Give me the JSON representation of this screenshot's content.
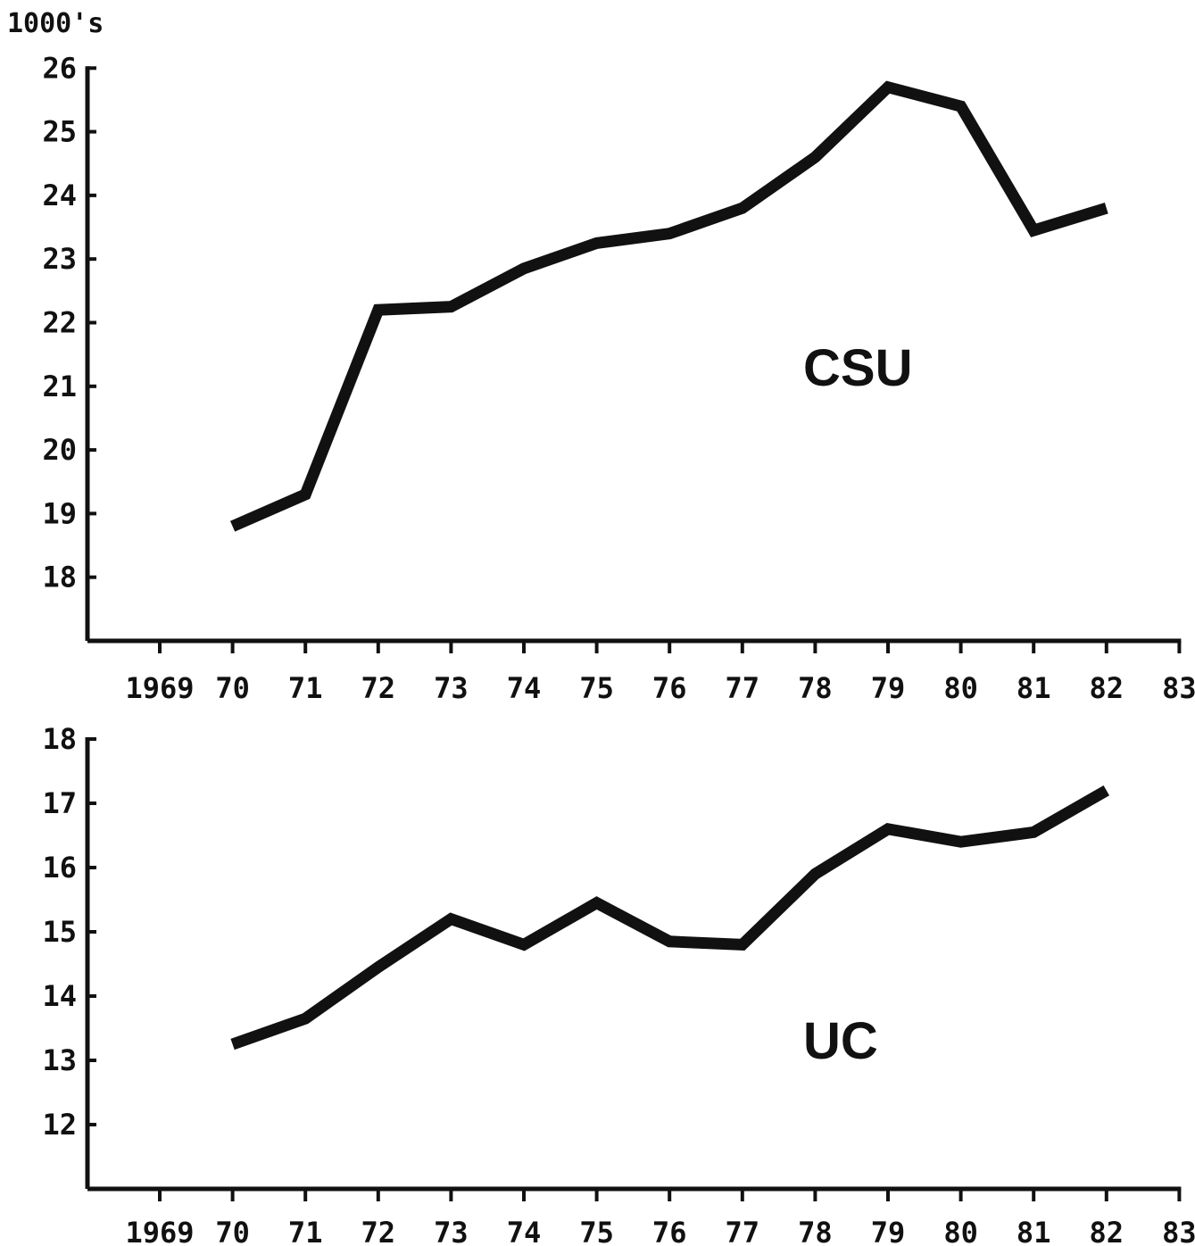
{
  "unit_label": "1000's",
  "chart_data": [
    {
      "type": "line",
      "series": [
        {
          "name": "CSU",
          "x": [
            "70",
            "71",
            "72",
            "73",
            "74",
            "75",
            "76",
            "77",
            "78",
            "79",
            "80",
            "81",
            "82"
          ],
          "values": [
            18.8,
            19.3,
            22.2,
            22.25,
            22.85,
            23.25,
            23.4,
            23.8,
            24.6,
            25.7,
            25.4,
            23.45,
            23.8
          ]
        }
      ],
      "x_tick_labels": [
        "1969",
        "70",
        "71",
        "72",
        "73",
        "74",
        "75",
        "76",
        "77",
        "78",
        "79",
        "80",
        "81",
        "82",
        "83"
      ],
      "y_tick_labels": [
        "18",
        "19",
        "20",
        "21",
        "22",
        "23",
        "24",
        "25",
        "26"
      ],
      "ylim": [
        17,
        26
      ]
    },
    {
      "type": "line",
      "series": [
        {
          "name": "UC",
          "x": [
            "70",
            "71",
            "72",
            "73",
            "74",
            "75",
            "76",
            "77",
            "78",
            "79",
            "80",
            "81",
            "82"
          ],
          "values": [
            13.25,
            13.65,
            14.45,
            15.2,
            14.8,
            15.45,
            14.85,
            14.8,
            15.9,
            16.6,
            16.4,
            16.55,
            17.2
          ]
        }
      ],
      "x_tick_labels": [
        "1969",
        "70",
        "71",
        "72",
        "73",
        "74",
        "75",
        "76",
        "77",
        "78",
        "79",
        "80",
        "81",
        "82",
        "83"
      ],
      "y_tick_labels": [
        "12",
        "13",
        "14",
        "15",
        "16",
        "17",
        "18"
      ],
      "ylim": [
        11,
        18
      ]
    }
  ]
}
